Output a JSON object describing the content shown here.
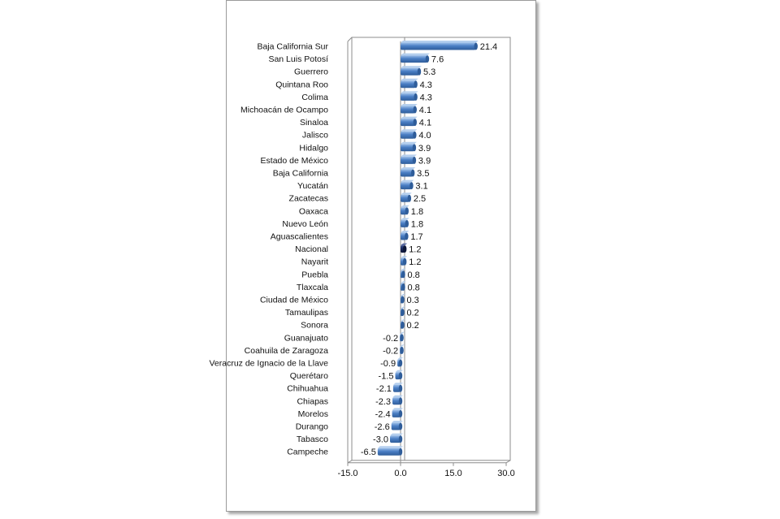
{
  "chart_data": {
    "type": "bar",
    "orientation": "horizontal",
    "categories": [
      "Baja California Sur",
      "San Luis Potosí",
      "Guerrero",
      "Quintana Roo",
      "Colima",
      "Michoacán de Ocampo",
      "Sinaloa",
      "Jalisco",
      "Hidalgo",
      "Estado de México",
      "Baja California",
      "Yucatán",
      "Zacatecas",
      "Oaxaca",
      "Nuevo León",
      "Aguascalientes",
      "Nacional",
      "Nayarit",
      "Puebla",
      "Tlaxcala",
      "Ciudad de México",
      "Tamaulipas",
      "Sonora",
      "Guanajuato",
      "Coahuila de Zaragoza",
      "Veracruz de Ignacio de la Llave",
      "Querétaro",
      "Chihuahua",
      "Chiapas",
      "Morelos",
      "Durango",
      "Tabasco",
      "Campeche"
    ],
    "values": [
      21.4,
      7.6,
      5.3,
      4.3,
      4.3,
      4.1,
      4.1,
      4.0,
      3.9,
      3.9,
      3.5,
      3.1,
      2.5,
      1.8,
      1.8,
      1.7,
      1.2,
      1.2,
      0.8,
      0.8,
      0.3,
      0.2,
      0.2,
      -0.2,
      -0.2,
      -0.9,
      -1.5,
      -2.1,
      -2.3,
      -2.4,
      -2.6,
      -3.0,
      -6.5
    ],
    "value_labels": [
      "21.4",
      "7.6",
      "5.3",
      "4.3",
      "4.3",
      "4.1",
      "4.1",
      "4.0",
      "3.9",
      "3.9",
      "3.5",
      "3.1",
      "2.5",
      "1.8",
      "1.8",
      "1.7",
      "1.2",
      "1.2",
      "0.8",
      "0.8",
      "0.3",
      "0.2",
      "0.2",
      "-0.2",
      "-0.2",
      "-0.9",
      "-1.5",
      "-2.1",
      "-2.3",
      "-2.4",
      "-2.6",
      "-3.0",
      "-6.5"
    ],
    "highlight_category": "Nacional",
    "xlim": [
      -15.0,
      30.0
    ],
    "x_ticks": [
      "-15.0",
      "0.0",
      "15.0",
      "30.0"
    ],
    "grid": false,
    "colors": {
      "bar": "#4a7ec4",
      "highlight": "#1b2a5e"
    }
  }
}
